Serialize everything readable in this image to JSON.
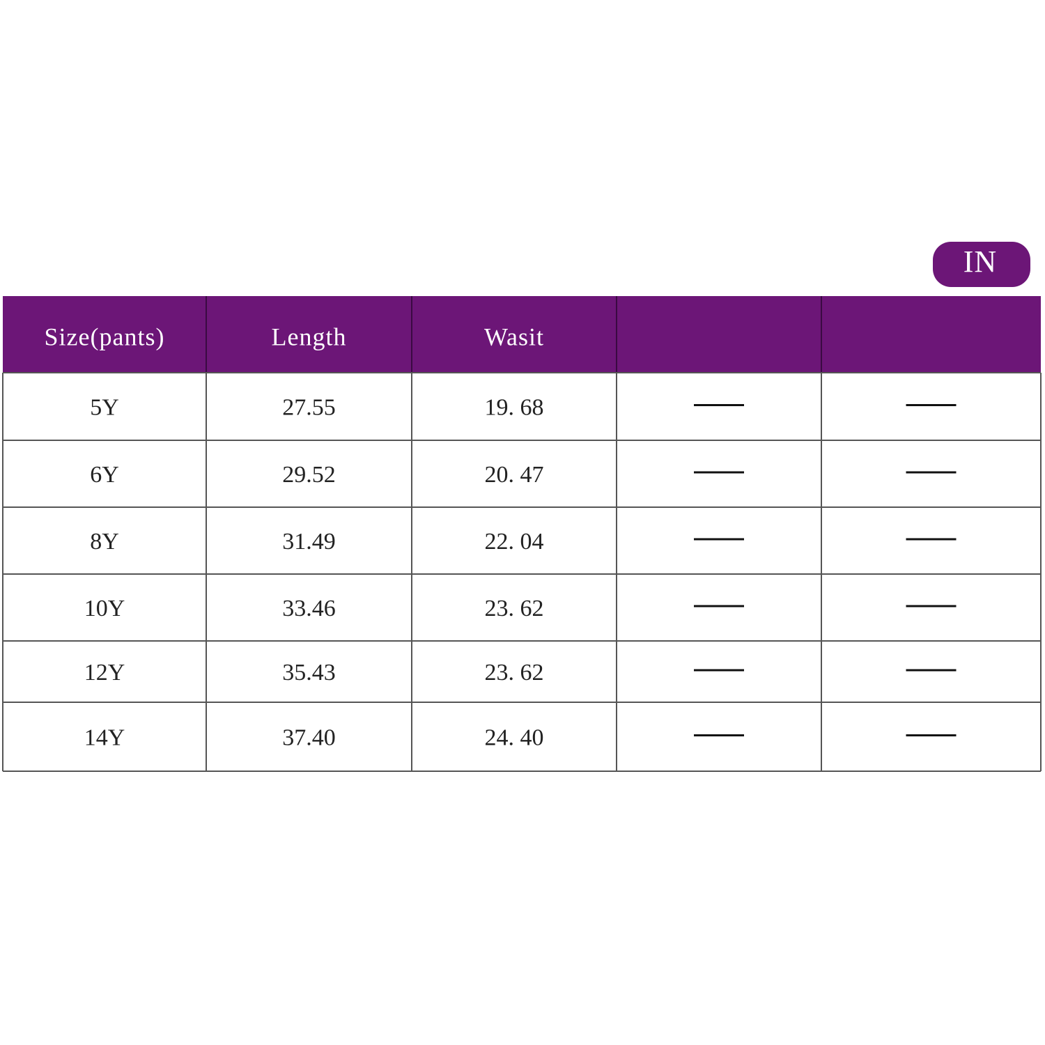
{
  "badge": "IN",
  "table": {
    "header": [
      "Size(pants)",
      "Length",
      "Wasit"
    ],
    "rows": [
      [
        "5Y",
        "27.55",
        "19. 68"
      ],
      [
        "6Y",
        "29.52",
        "20. 47"
      ],
      [
        "8Y",
        "31.49",
        "22. 04"
      ],
      [
        "10Y",
        "33.46",
        "23. 62"
      ],
      [
        "12Y",
        "35.43",
        "23. 62"
      ],
      [
        "14Y",
        "37.40",
        "24. 40"
      ]
    ]
  }
}
